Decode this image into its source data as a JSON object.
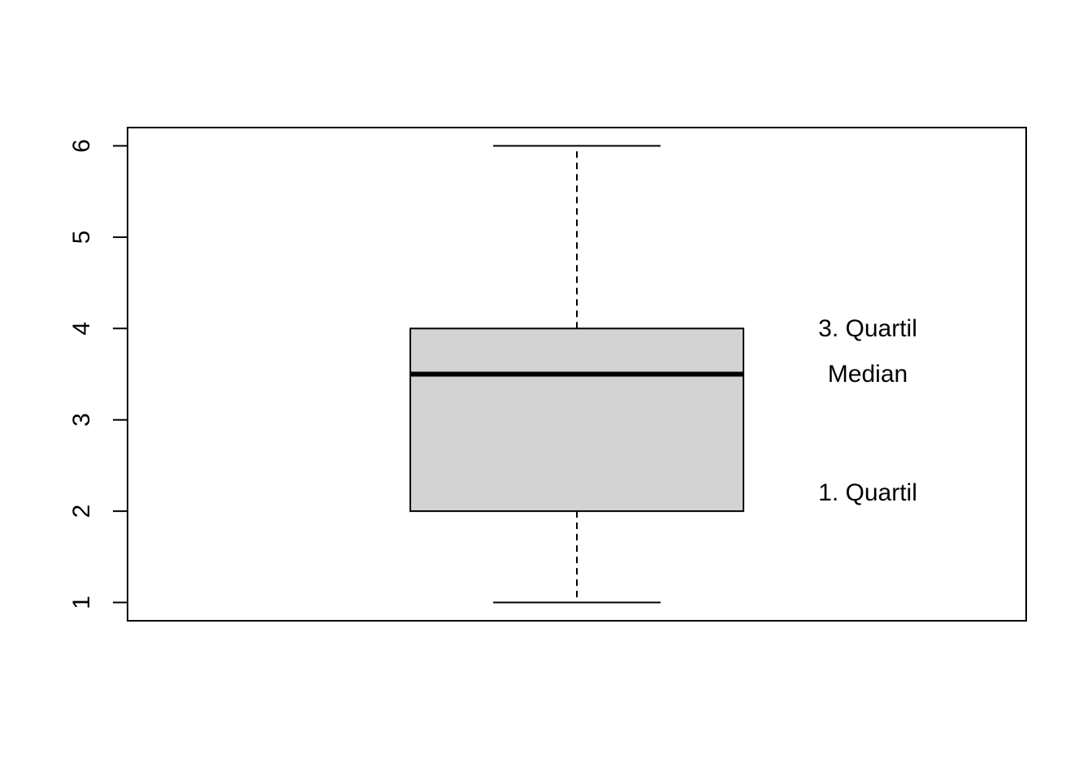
{
  "chart_data": {
    "type": "box",
    "title": "",
    "xlabel": "",
    "ylabel": "",
    "ylim": [
      0.8,
      6.2
    ],
    "yticks": [
      1,
      2,
      3,
      4,
      5,
      6
    ],
    "box": {
      "min": 1,
      "q1": 2,
      "median": 3.5,
      "q3": 4,
      "max": 6,
      "fill": "#d3d3d3"
    },
    "annotations": [
      {
        "text": "3. Quartil",
        "y": 4
      },
      {
        "text": "Median",
        "y": 3.5
      },
      {
        "text": "1. Quartil",
        "y": 2.2
      }
    ]
  }
}
